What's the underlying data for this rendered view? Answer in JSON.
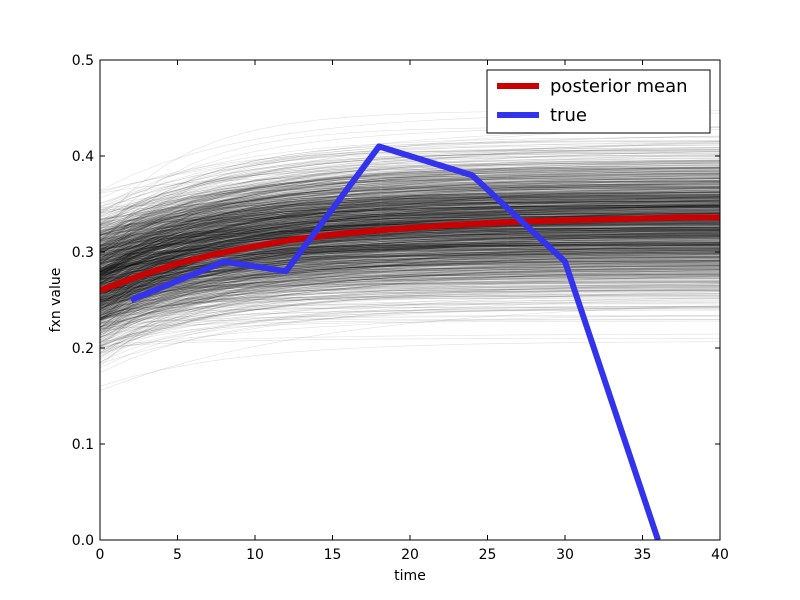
{
  "chart_data": {
    "type": "line",
    "title": "",
    "xlabel": "time",
    "ylabel": "fxn value",
    "xlim": [
      0,
      40
    ],
    "ylim": [
      0.0,
      0.5
    ],
    "x_ticks": [
      "0",
      "5",
      "10",
      "15",
      "20",
      "25",
      "30",
      "35",
      "40"
    ],
    "y_ticks": [
      "0.0",
      "0.1",
      "0.2",
      "0.3",
      "0.4",
      "0.5"
    ],
    "grid": false,
    "legend_position": "top-right",
    "series": [
      {
        "name": "posterior mean",
        "color": "#cc0000",
        "x": [
          0,
          2.5,
          5,
          7.5,
          10,
          12.5,
          15,
          17.5,
          20,
          22.5,
          25,
          27.5,
          30,
          32.5,
          35,
          37.5,
          40
        ],
        "y": [
          0.26,
          0.275,
          0.288,
          0.298,
          0.306,
          0.313,
          0.318,
          0.322,
          0.325,
          0.328,
          0.33,
          0.332,
          0.333,
          0.334,
          0.335,
          0.336,
          0.336
        ]
      },
      {
        "name": "true",
        "color": "#3333ee",
        "x": [
          2,
          8,
          12,
          18,
          24,
          30,
          36
        ],
        "y": [
          0.25,
          0.29,
          0.28,
          0.41,
          0.38,
          0.29,
          0.0
        ]
      }
    ],
    "posterior_samples": {
      "color": "#000000",
      "start_range": [
        0.09,
        0.45
      ],
      "end_range": [
        0.18,
        0.48
      ]
    }
  }
}
